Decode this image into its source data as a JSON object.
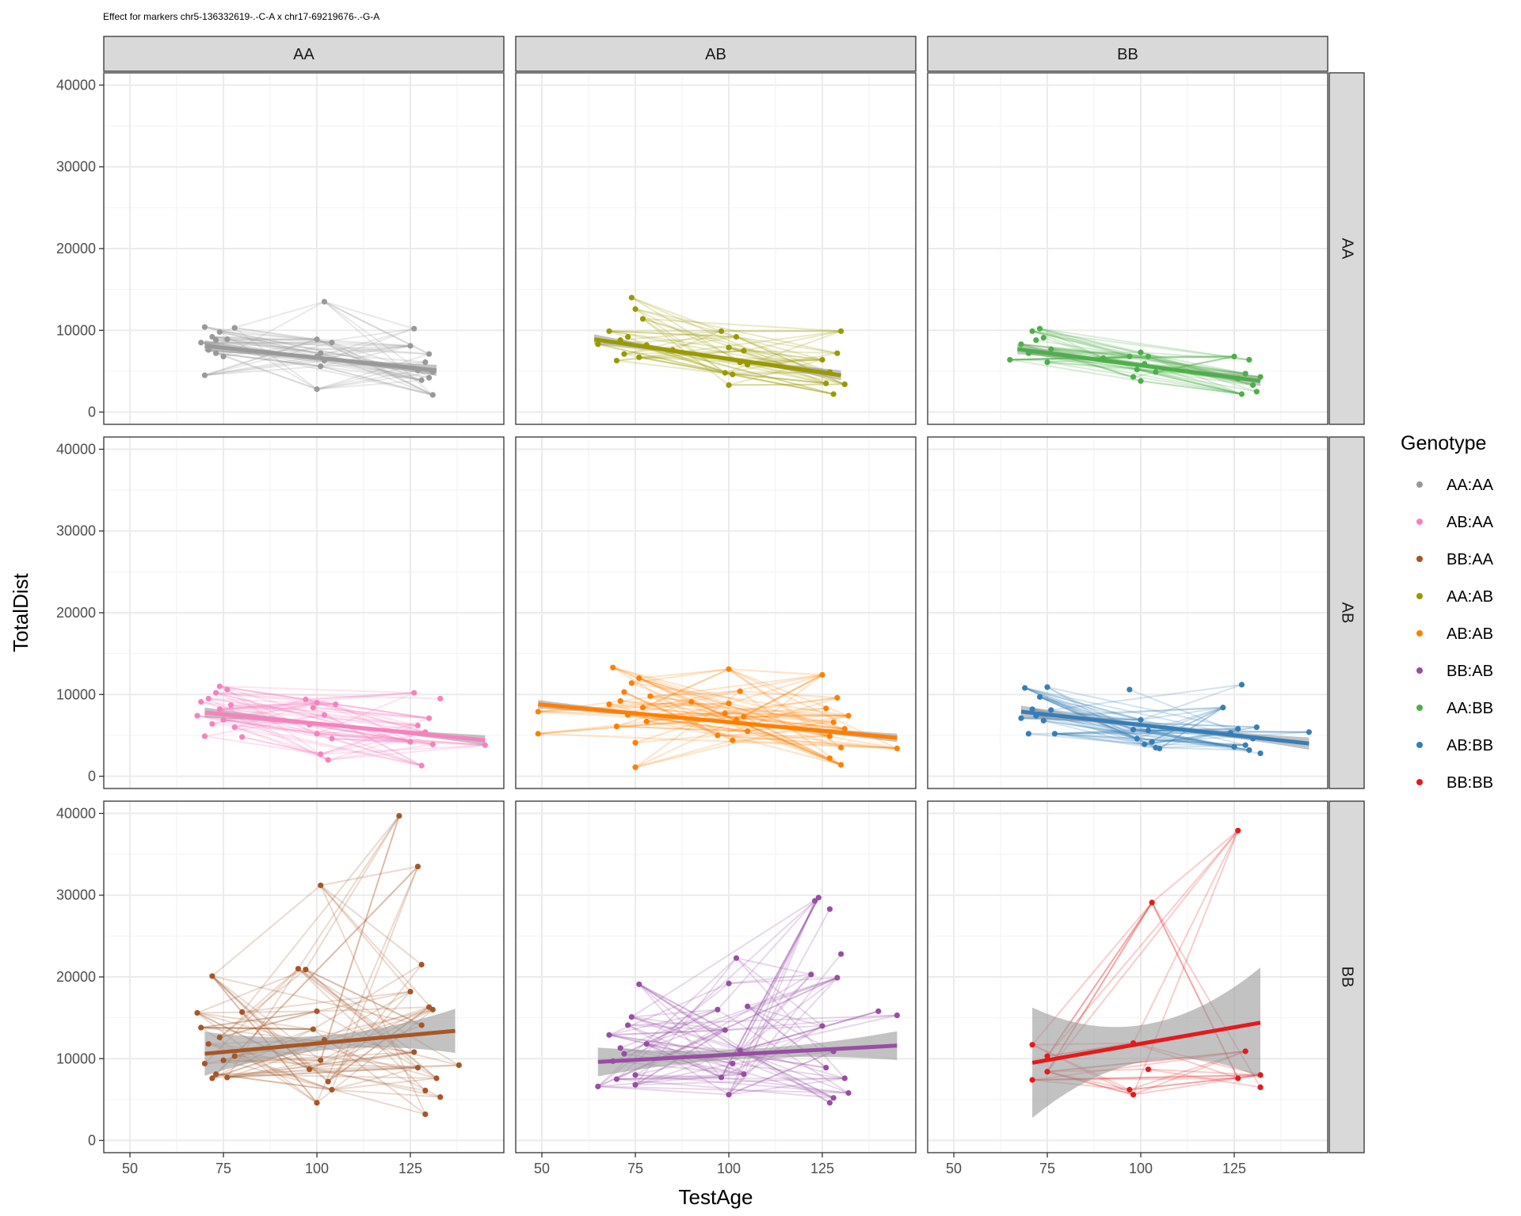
{
  "title": "Effect for markers chr5-136332619-.-C-A x chr17-69219676-.-G-A",
  "chart_data": {
    "type": "scatter",
    "title": "Effect for markers chr5-136332619-.-C-A x chr17-69219676-.-G-A",
    "xlabel": "TestAge",
    "ylabel": "TotalDist",
    "xlim": [
      43,
      150
    ],
    "ylim": [
      -1500,
      41500
    ],
    "x_ticks": [
      50,
      75,
      100,
      125
    ],
    "x_tick_labels": [
      "50",
      "75",
      "100",
      "125"
    ],
    "y_ticks": [
      0,
      10000,
      20000,
      30000,
      40000
    ],
    "y_tick_labels": [
      "0",
      "10000",
      "20000",
      "30000",
      "40000"
    ],
    "grid": true,
    "legend_position": "right",
    "legend_title": "Genotype",
    "column_strips": [
      "AA",
      "AB",
      "BB"
    ],
    "row_strips": [
      "AA",
      "AB",
      "BB"
    ],
    "series": [
      {
        "name": "AA:AA",
        "color": "#999999",
        "row": 0,
        "col": 0,
        "fit": {
          "x0": 70,
          "y0": 8100,
          "x1": 132,
          "y1": 5100,
          "se": 500
        },
        "points": [
          [
            69,
            8500
          ],
          [
            70,
            4500
          ],
          [
            70,
            10400
          ],
          [
            71,
            7600
          ],
          [
            72,
            9200
          ],
          [
            73,
            8800
          ],
          [
            73,
            7200
          ],
          [
            74,
            9800
          ],
          [
            75,
            6800
          ],
          [
            76,
            8900
          ],
          [
            78,
            10300
          ],
          [
            100,
            6800
          ],
          [
            100,
            8900
          ],
          [
            100,
            2800
          ],
          [
            101,
            5600
          ],
          [
            101,
            7200
          ],
          [
            102,
            13500
          ],
          [
            102,
            6300
          ],
          [
            104,
            8500
          ],
          [
            125,
            8100
          ],
          [
            126,
            10200
          ],
          [
            127,
            5100
          ],
          [
            128,
            3900
          ],
          [
            129,
            6100
          ],
          [
            130,
            4200
          ],
          [
            130,
            7100
          ],
          [
            131,
            2100
          ],
          [
            131,
            4900
          ]
        ]
      },
      {
        "name": "AB:AA",
        "color": "#F781BF",
        "row": 1,
        "col": 0,
        "fit": {
          "x0": 70,
          "y0": 7800,
          "x1": 145,
          "y1": 4400,
          "se": 450
        },
        "points": [
          [
            68,
            7400
          ],
          [
            69,
            9100
          ],
          [
            70,
            4900
          ],
          [
            71,
            9500
          ],
          [
            72,
            6400
          ],
          [
            73,
            10200
          ],
          [
            74,
            8200
          ],
          [
            74,
            11000
          ],
          [
            75,
            6900
          ],
          [
            76,
            10600
          ],
          [
            77,
            8700
          ],
          [
            78,
            6000
          ],
          [
            80,
            4800
          ],
          [
            97,
            9400
          ],
          [
            98,
            6300
          ],
          [
            99,
            8400
          ],
          [
            100,
            5200
          ],
          [
            100,
            9000
          ],
          [
            101,
            2700
          ],
          [
            102,
            7500
          ],
          [
            103,
            2000
          ],
          [
            104,
            4600
          ],
          [
            105,
            8800
          ],
          [
            125,
            4200
          ],
          [
            126,
            10200
          ],
          [
            127,
            6200
          ],
          [
            128,
            1300
          ],
          [
            129,
            5400
          ],
          [
            130,
            7100
          ],
          [
            131,
            3900
          ],
          [
            133,
            9500
          ],
          [
            145,
            3800
          ]
        ]
      },
      {
        "name": "BB:AA",
        "color": "#A65628",
        "row": 2,
        "col": 0,
        "fit": {
          "x0": 70,
          "y0": 10600,
          "x1": 137,
          "y1": 13400,
          "se": 2000
        },
        "points": [
          [
            68,
            15600
          ],
          [
            69,
            13800
          ],
          [
            70,
            9400
          ],
          [
            71,
            11800
          ],
          [
            72,
            7600
          ],
          [
            72,
            20100
          ],
          [
            73,
            8100
          ],
          [
            74,
            12600
          ],
          [
            75,
            9800
          ],
          [
            76,
            7700
          ],
          [
            78,
            10300
          ],
          [
            80,
            15700
          ],
          [
            95,
            21000
          ],
          [
            97,
            20900
          ],
          [
            98,
            8700
          ],
          [
            99,
            13600
          ],
          [
            100,
            15800
          ],
          [
            100,
            4600
          ],
          [
            101,
            31200
          ],
          [
            101,
            9800
          ],
          [
            102,
            12300
          ],
          [
            103,
            7200
          ],
          [
            104,
            6200
          ],
          [
            122,
            39700
          ],
          [
            125,
            18200
          ],
          [
            126,
            10800
          ],
          [
            127,
            33500
          ],
          [
            127,
            8900
          ],
          [
            128,
            21500
          ],
          [
            128,
            14100
          ],
          [
            129,
            6100
          ],
          [
            129,
            3200
          ],
          [
            130,
            16300
          ],
          [
            131,
            16000
          ],
          [
            132,
            7600
          ],
          [
            133,
            5300
          ],
          [
            138,
            9200
          ]
        ]
      },
      {
        "name": "AA:AB",
        "color": "#999900",
        "row": 0,
        "col": 1,
        "fit": {
          "x0": 64,
          "y0": 8900,
          "x1": 130,
          "y1": 4500,
          "se": 450
        },
        "points": [
          [
            65,
            8300
          ],
          [
            68,
            9900
          ],
          [
            70,
            6300
          ],
          [
            71,
            8800
          ],
          [
            72,
            7100
          ],
          [
            73,
            9200
          ],
          [
            74,
            14000
          ],
          [
            75,
            12600
          ],
          [
            76,
            6700
          ],
          [
            77,
            11400
          ],
          [
            78,
            8200
          ],
          [
            85,
            7600
          ],
          [
            98,
            9900
          ],
          [
            99,
            4800
          ],
          [
            100,
            3300
          ],
          [
            100,
            7900
          ],
          [
            101,
            4600
          ],
          [
            102,
            9200
          ],
          [
            103,
            6100
          ],
          [
            104,
            7500
          ],
          [
            105,
            5800
          ],
          [
            125,
            6400
          ],
          [
            126,
            3500
          ],
          [
            127,
            4900
          ],
          [
            128,
            2200
          ],
          [
            129,
            7200
          ],
          [
            130,
            9900
          ],
          [
            131,
            3400
          ]
        ]
      },
      {
        "name": "AB:AB",
        "color": "#FF7F00",
        "row": 1,
        "col": 1,
        "fit": {
          "x0": 49,
          "y0": 8800,
          "x1": 145,
          "y1": 4700,
          "se": 380
        },
        "points": [
          [
            49,
            5200
          ],
          [
            49,
            7900
          ],
          [
            68,
            8800
          ],
          [
            69,
            13300
          ],
          [
            70,
            6100
          ],
          [
            71,
            9200
          ],
          [
            72,
            10300
          ],
          [
            73,
            7500
          ],
          [
            74,
            11400
          ],
          [
            75,
            4100
          ],
          [
            75,
            1100
          ],
          [
            76,
            12000
          ],
          [
            77,
            8400
          ],
          [
            78,
            6700
          ],
          [
            79,
            9800
          ],
          [
            90,
            9100
          ],
          [
            97,
            5000
          ],
          [
            99,
            7700
          ],
          [
            100,
            8900
          ],
          [
            100,
            13100
          ],
          [
            101,
            4400
          ],
          [
            102,
            6900
          ],
          [
            103,
            10400
          ],
          [
            104,
            7300
          ],
          [
            105,
            5500
          ],
          [
            125,
            12400
          ],
          [
            126,
            8300
          ],
          [
            127,
            4900
          ],
          [
            127,
            2200
          ],
          [
            128,
            6600
          ],
          [
            129,
            9600
          ],
          [
            130,
            1400
          ],
          [
            130,
            3500
          ],
          [
            131,
            5800
          ],
          [
            132,
            7400
          ],
          [
            145,
            3400
          ]
        ]
      },
      {
        "name": "BB:AB",
        "color": "#984EA3",
        "row": 2,
        "col": 1,
        "fit": {
          "x0": 65,
          "y0": 9600,
          "x1": 145,
          "y1": 11600,
          "se": 1300
        },
        "points": [
          [
            65,
            6600
          ],
          [
            68,
            12900
          ],
          [
            69,
            9700
          ],
          [
            70,
            7500
          ],
          [
            71,
            11300
          ],
          [
            72,
            10600
          ],
          [
            73,
            14100
          ],
          [
            74,
            15100
          ],
          [
            75,
            8000
          ],
          [
            75,
            6800
          ],
          [
            76,
            19100
          ],
          [
            78,
            11800
          ],
          [
            97,
            16000
          ],
          [
            98,
            7700
          ],
          [
            99,
            13500
          ],
          [
            100,
            19200
          ],
          [
            100,
            5600
          ],
          [
            101,
            9400
          ],
          [
            102,
            22300
          ],
          [
            103,
            11000
          ],
          [
            104,
            8100
          ],
          [
            105,
            16400
          ],
          [
            122,
            20300
          ],
          [
            123,
            29300
          ],
          [
            124,
            29700
          ],
          [
            125,
            14000
          ],
          [
            126,
            8900
          ],
          [
            127,
            28300
          ],
          [
            127,
            4600
          ],
          [
            128,
            10900
          ],
          [
            128,
            5200
          ],
          [
            129,
            19900
          ],
          [
            130,
            22800
          ],
          [
            131,
            7600
          ],
          [
            132,
            5800
          ],
          [
            140,
            15800
          ],
          [
            145,
            15300
          ]
        ]
      },
      {
        "name": "AA:BB",
        "color": "#4DAF4A",
        "row": 0,
        "col": 2,
        "fit": {
          "x0": 67,
          "y0": 7700,
          "x1": 132,
          "y1": 3800,
          "se": 450
        },
        "points": [
          [
            65,
            6400
          ],
          [
            68,
            8300
          ],
          [
            70,
            7200
          ],
          [
            71,
            9900
          ],
          [
            72,
            8800
          ],
          [
            73,
            10200
          ],
          [
            74,
            9100
          ],
          [
            75,
            6100
          ],
          [
            76,
            7700
          ],
          [
            90,
            6600
          ],
          [
            97,
            6800
          ],
          [
            98,
            4300
          ],
          [
            99,
            5200
          ],
          [
            100,
            3800
          ],
          [
            100,
            7300
          ],
          [
            101,
            5900
          ],
          [
            102,
            6800
          ],
          [
            104,
            4900
          ],
          [
            125,
            6800
          ],
          [
            126,
            4100
          ],
          [
            127,
            2200
          ],
          [
            128,
            4700
          ],
          [
            129,
            6400
          ],
          [
            130,
            3300
          ],
          [
            131,
            2500
          ],
          [
            132,
            4300
          ]
        ]
      },
      {
        "name": "AB:BB",
        "color": "#377EB8",
        "row": 1,
        "col": 2,
        "fit": {
          "x0": 68,
          "y0": 7900,
          "x1": 145,
          "y1": 4000,
          "se": 550
        },
        "points": [
          [
            68,
            7100
          ],
          [
            69,
            10800
          ],
          [
            70,
            5200
          ],
          [
            71,
            8200
          ],
          [
            72,
            7400
          ],
          [
            73,
            9700
          ],
          [
            74,
            6800
          ],
          [
            75,
            10900
          ],
          [
            76,
            8100
          ],
          [
            77,
            5200
          ],
          [
            97,
            10600
          ],
          [
            98,
            5700
          ],
          [
            99,
            4600
          ],
          [
            100,
            6900
          ],
          [
            101,
            3900
          ],
          [
            102,
            5600
          ],
          [
            103,
            4200
          ],
          [
            104,
            3500
          ],
          [
            105,
            3400
          ],
          [
            122,
            8400
          ],
          [
            124,
            5300
          ],
          [
            125,
            3600
          ],
          [
            126,
            5800
          ],
          [
            127,
            11200
          ],
          [
            128,
            3800
          ],
          [
            129,
            3200
          ],
          [
            130,
            4600
          ],
          [
            131,
            6000
          ],
          [
            132,
            2800
          ],
          [
            145,
            5400
          ]
        ]
      },
      {
        "name": "BB:BB",
        "color": "#E41A1C",
        "row": 2,
        "col": 2,
        "fit": {
          "x0": 71,
          "y0": 9500,
          "x1": 132,
          "y1": 14400,
          "se": 5000
        },
        "points": [
          [
            71,
            11700
          ],
          [
            71,
            7400
          ],
          [
            75,
            10300
          ],
          [
            75,
            8400
          ],
          [
            97,
            6200
          ],
          [
            98,
            5600
          ],
          [
            98,
            11900
          ],
          [
            103,
            29100
          ],
          [
            102,
            8700
          ],
          [
            126,
            37900
          ],
          [
            126,
            7600
          ],
          [
            128,
            10900
          ],
          [
            132,
            8000
          ],
          [
            132,
            6500
          ]
        ]
      }
    ]
  }
}
